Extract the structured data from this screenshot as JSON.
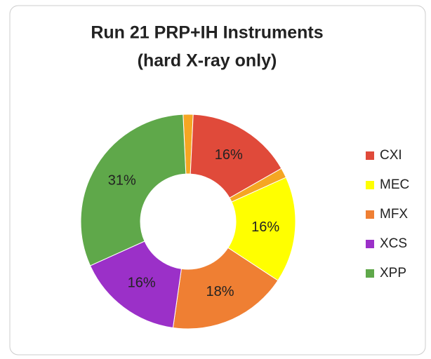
{
  "chart_data": {
    "type": "donut",
    "title": "Run 21 PRP+IH Instruments",
    "subtitle": "(hard X-ray only)",
    "categories": [
      null,
      "CXI",
      null,
      "MEC",
      "MFX",
      "XCS",
      "XPP"
    ],
    "values": [
      1.5,
      16,
      1.5,
      16,
      18,
      16,
      31
    ],
    "value_labels": [
      null,
      "16%",
      null,
      "16%",
      "18%",
      "16%",
      "31%"
    ],
    "colors": [
      "#f5a623",
      "#e04a3a",
      "#f5a623",
      "#ffff00",
      "#ef7f33",
      "#9b30c8",
      "#5fa84a"
    ],
    "legend": "right"
  }
}
